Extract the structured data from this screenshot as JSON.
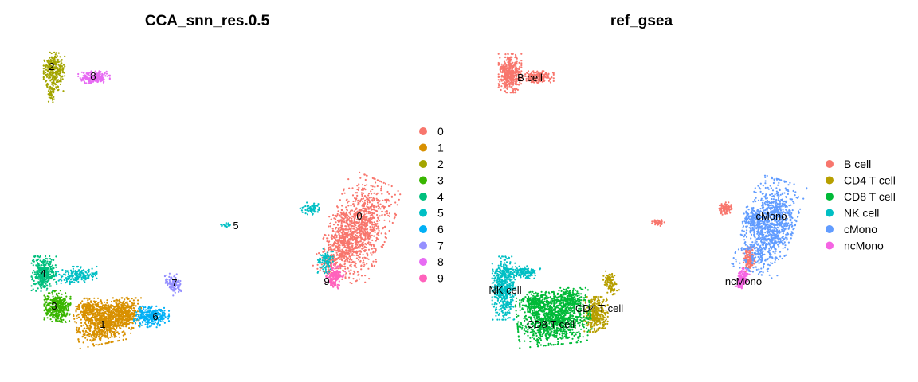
{
  "chart_data": [
    {
      "type": "scatter",
      "title": "CCA_snn_res.0.5",
      "xlabel": "",
      "ylabel": "",
      "axes": "hidden",
      "grid": false,
      "legend": {
        "position": "right",
        "entries": [
          {
            "label": "0",
            "color": "#F8766D"
          },
          {
            "label": "1",
            "color": "#D89000"
          },
          {
            "label": "2",
            "color": "#A3A500"
          },
          {
            "label": "3",
            "color": "#39B600"
          },
          {
            "label": "4",
            "color": "#00BF7D"
          },
          {
            "label": "5",
            "color": "#00BFC4"
          },
          {
            "label": "6",
            "color": "#00B0F6"
          },
          {
            "label": "7",
            "color": "#9590FF"
          },
          {
            "label": "8",
            "color": "#E76BF3"
          },
          {
            "label": "9",
            "color": "#FF62BC"
          }
        ]
      },
      "clusters": [
        {
          "label": "0",
          "color": "#F8766D",
          "n": 1400,
          "blobs": [
            [
              450,
              288,
              33,
              60,
              0.4
            ],
            [
              430,
              302,
              16,
              30,
              0
            ],
            [
              415,
              328,
              10,
              16,
              0.6
            ]
          ],
          "label_pos": [
            451,
            272
          ]
        },
        {
          "label": "1",
          "color": "#D89000",
          "n": 1300,
          "blobs": [
            [
              130,
              405,
              32,
              24,
              -0.2
            ],
            [
              112,
              388,
              15,
              12,
              0
            ],
            [
              155,
              392,
              20,
              16,
              0
            ]
          ],
          "label_pos": [
            129,
            408
          ]
        },
        {
          "label": "2",
          "color": "#A3A500",
          "n": 350,
          "blobs": [
            [
              68,
              90,
              12,
              22,
              0
            ],
            [
              64,
              118,
              4,
              10,
              0
            ]
          ],
          "label_pos": [
            65,
            84
          ]
        },
        {
          "label": "3",
          "color": "#39B600",
          "n": 400,
          "blobs": [
            [
              72,
              385,
              15,
              18,
              0
            ]
          ],
          "label_pos": [
            68,
            385
          ]
        },
        {
          "label": "4",
          "color": "#00BF7D",
          "n": 350,
          "blobs": [
            [
              55,
              344,
              14,
              20,
              0
            ]
          ],
          "label_pos": [
            54,
            344
          ]
        },
        {
          "label": "5",
          "color": "#00BFC4",
          "n": 360,
          "blobs": [
            [
              95,
              346,
              24,
              10,
              0
            ],
            [
              390,
              262,
              12,
              7,
              0
            ],
            [
              408,
              328,
              9,
              14,
              0
            ],
            [
              285,
              283,
              7,
              3,
              0
            ]
          ],
          "label_pos": [
            296,
            284
          ]
        },
        {
          "label": "6",
          "color": "#00B0F6",
          "n": 280,
          "blobs": [
            [
              190,
              398,
              20,
              12,
              0
            ]
          ],
          "label_pos": [
            195,
            398
          ]
        },
        {
          "label": "7",
          "color": "#9590FF",
          "n": 120,
          "blobs": [
            [
              218,
              356,
              8,
              12,
              -0.5
            ]
          ],
          "label_pos": [
            219,
            356
          ]
        },
        {
          "label": "8",
          "color": "#E76BF3",
          "n": 220,
          "blobs": [
            [
              118,
              97,
              18,
              7,
              0
            ]
          ],
          "label_pos": [
            117,
            96
          ]
        },
        {
          "label": "9",
          "color": "#FF62BC",
          "n": 170,
          "blobs": [
            [
              420,
              347,
              9,
              12,
              0.4
            ]
          ],
          "label_pos": [
            410,
            354
          ]
        }
      ]
    },
    {
      "type": "scatter",
      "title": "ref_gsea",
      "xlabel": "",
      "ylabel": "",
      "axes": "hidden",
      "grid": false,
      "legend": {
        "position": "right",
        "entries": [
          {
            "label": "B cell",
            "color": "#F8766D"
          },
          {
            "label": "CD4 T cell",
            "color": "#B79F00"
          },
          {
            "label": "CD8 T cell",
            "color": "#00BA38"
          },
          {
            "label": "NK cell",
            "color": "#00BFC4"
          },
          {
            "label": "cMono",
            "color": "#619CFF"
          },
          {
            "label": "ncMono",
            "color": "#F564E3"
          }
        ]
      },
      "clusters": [
        {
          "label": "B cell",
          "color": "#F8766D",
          "n": 900,
          "blobs": [
            [
              640,
              92,
              13,
              22,
              0
            ],
            [
              675,
              97,
              18,
              7,
              0
            ],
            [
              910,
              262,
              8,
              7,
              0
            ],
            [
              826,
              280,
              7,
              4,
              0
            ],
            [
              940,
              326,
              7,
              14,
              0
            ]
          ],
          "label_pos": [
            665,
            98
          ]
        },
        {
          "label": "CD4 T cell",
          "color": "#B79F00",
          "n": 450,
          "blobs": [
            [
              748,
              395,
              14,
              20,
              0
            ],
            [
              766,
              355,
              7,
              14,
              -0.3
            ]
          ],
          "label_pos": [
            752,
            388
          ]
        },
        {
          "label": "CD8 T cell",
          "color": "#00BA38",
          "n": 1500,
          "blobs": [
            [
              695,
              400,
              42,
              30,
              -0.1
            ],
            [
              672,
              380,
              18,
              12,
              0
            ],
            [
              715,
              375,
              18,
              12,
              0
            ]
          ],
          "label_pos": [
            691,
            408
          ]
        },
        {
          "label": "NK cell",
          "color": "#00BFC4",
          "n": 650,
          "blobs": [
            [
              632,
              362,
              13,
              36,
              0
            ],
            [
              656,
              342,
              20,
              7,
              0
            ]
          ],
          "label_pos": [
            634,
            365
          ]
        },
        {
          "label": "cMono",
          "color": "#619CFF",
          "n": 1200,
          "blobs": [
            [
              965,
              285,
              28,
              55,
              0.3
            ],
            [
              945,
              275,
              12,
              14,
              0
            ]
          ],
          "label_pos": [
            968,
            272
          ]
        },
        {
          "label": "ncMono",
          "color": "#F564E3",
          "n": 160,
          "blobs": [
            [
              932,
              350,
              6,
              11,
              0.3
            ]
          ],
          "label_pos": [
            933,
            354
          ]
        }
      ]
    }
  ]
}
